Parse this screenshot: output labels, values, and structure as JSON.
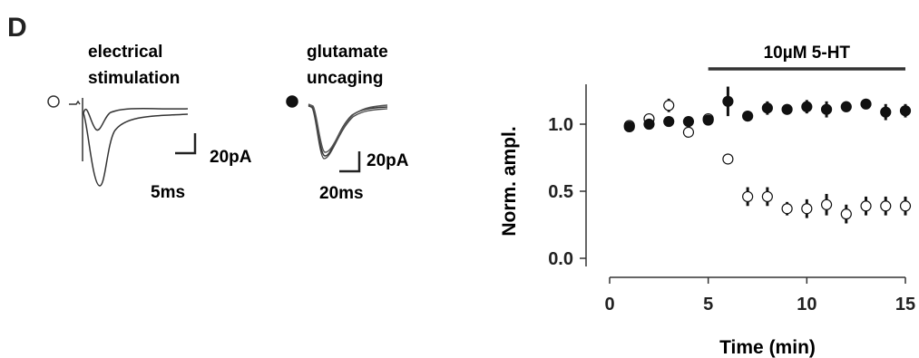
{
  "panel_label": "D",
  "traces": {
    "electrical": {
      "title_line1": "electrical",
      "title_line2": "stimulation",
      "scale_y": "20pA",
      "scale_x": "5ms",
      "marker": "open-circle"
    },
    "uncaging": {
      "title_line1": "glutamate",
      "title_line2": "uncaging",
      "scale_y": "20pA",
      "scale_x": "20ms",
      "marker": "filled-circle"
    }
  },
  "chart_data": {
    "type": "scatter",
    "title": "",
    "xlabel": "Time (min)",
    "ylabel": "Norm. ampl.",
    "xlim": [
      0,
      15
    ],
    "ylim": [
      -0.05,
      1.35
    ],
    "xticks": [
      0,
      5,
      10,
      15
    ],
    "yticks": [
      0.0,
      0.5,
      1.0
    ],
    "ytick_labels": [
      "0.0",
      "0.5",
      "1.0"
    ],
    "grid": false,
    "annotation": {
      "label": "10µM 5-HT",
      "x_start": 5,
      "x_end": 15
    },
    "series": [
      {
        "marker": "filled-circle",
        "color": "#111111",
        "x": [
          1,
          2,
          3,
          4,
          5,
          6,
          7,
          8,
          9,
          10,
          11,
          12,
          13,
          14,
          15
        ],
        "y": [
          0.98,
          1.0,
          1.02,
          1.02,
          1.03,
          1.17,
          1.06,
          1.12,
          1.11,
          1.13,
          1.11,
          1.13,
          1.15,
          1.09,
          1.1
        ],
        "err": [
          0.02,
          0.02,
          0.02,
          0.02,
          0.03,
          0.11,
          0.03,
          0.05,
          0.03,
          0.05,
          0.06,
          0.04,
          0.02,
          0.06,
          0.05
        ]
      },
      {
        "marker": "open-circle",
        "color": "#111111",
        "x": [
          1,
          2,
          3,
          4,
          5,
          6,
          7,
          8,
          9,
          10,
          11,
          12,
          13,
          14,
          15
        ],
        "y": [
          0.99,
          1.04,
          1.14,
          0.94,
          1.04,
          0.74,
          0.46,
          0.46,
          0.37,
          0.37,
          0.4,
          0.33,
          0.39,
          0.39,
          0.39
        ],
        "err": [
          0.02,
          0.02,
          0.05,
          0.02,
          0.02,
          0.02,
          0.07,
          0.07,
          0.05,
          0.07,
          0.08,
          0.07,
          0.07,
          0.07,
          0.07
        ]
      }
    ]
  }
}
